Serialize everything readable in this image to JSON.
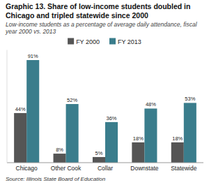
{
  "chart_data": {
    "type": "bar",
    "title": "Graphic 13. Share of low-income students doubled in Chicago and tripled statewide since 2000",
    "subtitle": "Low-income students as a percentage of average daily attendance, fiscal year 2000 vs. 2013",
    "source": "Source: Illinois State Board of Education",
    "categories": [
      "Chicago",
      "Other Cook",
      "Collar",
      "Downstate",
      "Statewide"
    ],
    "series": [
      {
        "name": "FY 2000",
        "color": "#555555",
        "values": [
          44,
          8,
          5,
          18,
          18
        ],
        "value_labels": [
          "44%",
          "8%",
          "5%",
          "18%",
          "18%"
        ]
      },
      {
        "name": "FY 2013",
        "color": "#3a7d8c",
        "values": [
          91,
          52,
          36,
          48,
          53
        ],
        "value_labels": [
          "91%",
          "52%",
          "36%",
          "48%",
          "53%"
        ]
      }
    ],
    "ylim": [
      0,
      100
    ],
    "data_labels": true,
    "tick_labels": "x",
    "legend": "top",
    "grid": false
  }
}
